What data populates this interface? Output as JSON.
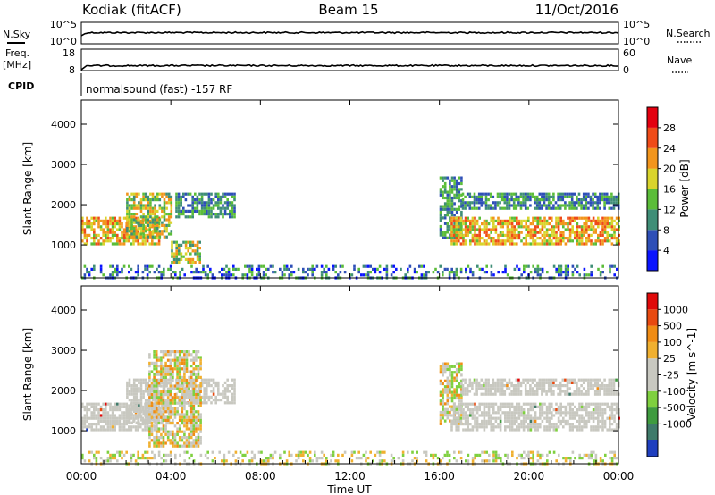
{
  "header": {
    "radar": "Kodiak (fitACF)",
    "beam": "Beam 15",
    "date": "11/Oct/2016"
  },
  "strip": {
    "nsky_label": "N.Sky",
    "nsky_ticks": [
      "10^5",
      "10^0"
    ],
    "nsearch_label": "N.Search",
    "nsearch_ticks": [
      "10^5",
      "10^0"
    ],
    "freq_label": "Freq.",
    "freq_unit": "[MHz]",
    "freq_ticks": [
      "18",
      "8"
    ],
    "nave_label": "Nave",
    "nave_ticks": [
      "60",
      "0"
    ],
    "cpid_label": "CPID",
    "cpid_text": "normalsound (fast) -157 RF"
  },
  "chart_data": [
    {
      "type": "heatmap",
      "panel": "power",
      "ylabel": "Slant Range [km]",
      "yticks": [
        "1000",
        "2000",
        "3000",
        "4000"
      ],
      "ylim": [
        180,
        4600
      ],
      "xlim": [
        0,
        24
      ],
      "colorbar_label": "Power [dB]",
      "colorbar_ticks": [
        "4",
        "8",
        "12",
        "16",
        "20",
        "24",
        "28"
      ],
      "colors": [
        "#0a14ff",
        "#2e4fb7",
        "#3f8e77",
        "#5bbd39",
        "#d9d42c",
        "#f2951c",
        "#ef4b18",
        "#e3000f"
      ],
      "patches": [
        {
          "x": [
            0.0,
            3.5
          ],
          "y": [
            1000,
            1700
          ],
          "level": "high"
        },
        {
          "x": [
            2.0,
            4.0
          ],
          "y": [
            1200,
            2300
          ],
          "level": "mixed"
        },
        {
          "x": [
            4.2,
            6.8
          ],
          "y": [
            1700,
            2300
          ],
          "level": "low"
        },
        {
          "x": [
            4.0,
            5.3
          ],
          "y": [
            600,
            1100
          ],
          "level": "mixed"
        },
        {
          "x": [
            16.0,
            17.0
          ],
          "y": [
            1200,
            2700
          ],
          "level": "low"
        },
        {
          "x": [
            16.5,
            24.0
          ],
          "y": [
            1000,
            1700
          ],
          "level": "high"
        },
        {
          "x": [
            17.0,
            24.0
          ],
          "y": [
            1900,
            2300
          ],
          "level": "low"
        },
        {
          "x": [
            0.0,
            24.0
          ],
          "y": [
            200,
            500
          ],
          "level": "ground"
        }
      ]
    },
    {
      "type": "heatmap",
      "panel": "velocity",
      "ylabel": "Slant Range [km]",
      "yticks": [
        "1000",
        "2000",
        "3000",
        "4000"
      ],
      "ylim": [
        180,
        4600
      ],
      "xlim": [
        0,
        24
      ],
      "colorbar_label": "Velocity [m s^-1]",
      "colorbar_ticks": [
        "1000",
        "500",
        "100",
        "25",
        "-25",
        "-100",
        "-500",
        "-1000"
      ],
      "colors": [
        "#1f3fbf",
        "#3f7a6a",
        "#3f9b3f",
        "#7fd03f",
        "#c8c8c0",
        "#c8c8c0",
        "#f0b030",
        "#f08c14",
        "#e84a10",
        "#e00a0a"
      ],
      "patches": [
        {
          "x": [
            0.0,
            3.5
          ],
          "y": [
            1000,
            1700
          ],
          "level": "gray"
        },
        {
          "x": [
            2.0,
            4.0
          ],
          "y": [
            1200,
            2300
          ],
          "level": "gray"
        },
        {
          "x": [
            4.2,
            6.8
          ],
          "y": [
            1700,
            2300
          ],
          "level": "gray"
        },
        {
          "x": [
            3.0,
            5.3
          ],
          "y": [
            600,
            3000
          ],
          "level": "mixed"
        },
        {
          "x": [
            16.0,
            17.0
          ],
          "y": [
            1200,
            2700
          ],
          "level": "mixed"
        },
        {
          "x": [
            16.5,
            24.0
          ],
          "y": [
            1000,
            1700
          ],
          "level": "gray"
        },
        {
          "x": [
            17.0,
            24.0
          ],
          "y": [
            1900,
            2300
          ],
          "level": "gray"
        },
        {
          "x": [
            0.0,
            24.0
          ],
          "y": [
            200,
            500
          ],
          "level": "ground"
        }
      ]
    }
  ],
  "xaxis": {
    "label": "Time UT",
    "ticks": [
      "00:00",
      "04:00",
      "08:00",
      "12:00",
      "16:00",
      "20:00",
      "00:00"
    ]
  }
}
